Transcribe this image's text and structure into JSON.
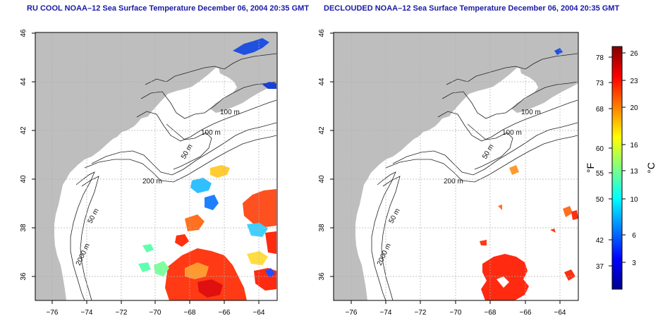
{
  "panels": [
    {
      "title": "RU COOL NOAA–12 Sea Surface Temperature December 06, 2004 20:35 GMT",
      "x_ticks": [
        "−76",
        "−74",
        "−72",
        "−70",
        "−68",
        "−66",
        "−64"
      ],
      "y_ticks": [
        "46",
        "44",
        "42",
        "40",
        "38",
        "36"
      ],
      "contour_labels": [
        "100 m",
        "100 m",
        "50 m",
        "200 m",
        "50 m",
        "2000 m"
      ],
      "variant": "cloudy"
    },
    {
      "title": "DECLOUDED NOAA–12 Sea Surface Temperature December 06, 2004 20:35 GMT",
      "x_ticks": [
        "−76",
        "−74",
        "−72",
        "−70",
        "−68",
        "−66",
        "−64"
      ],
      "y_ticks": [
        "46",
        "44",
        "42",
        "40",
        "38",
        "36"
      ],
      "contour_labels": [
        "100 m",
        "100 m",
        "50 m",
        "200 m",
        "50 m",
        "2000 m"
      ],
      "variant": "declouded"
    }
  ],
  "colorbar": {
    "fahrenheit_ticks": [
      "78",
      "73",
      "68",
      "60",
      "55",
      "50",
      "42",
      "37"
    ],
    "celsius_ticks": [
      "26",
      "23",
      "20",
      "16",
      "13",
      "10",
      "6",
      "3"
    ],
    "fahrenheit_label": "°F",
    "celsius_label": "°C",
    "colors": [
      "#00008f",
      "#0000ff",
      "#0080ff",
      "#00ffff",
      "#80ff80",
      "#ffff00",
      "#ff8000",
      "#ff0000",
      "#800000"
    ]
  },
  "colors": {
    "land": "#bebebe",
    "ocean": "#ffffff",
    "title": "#1a1aa6"
  }
}
